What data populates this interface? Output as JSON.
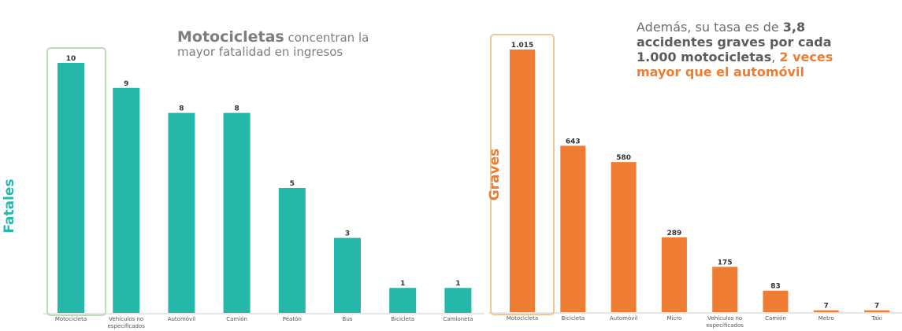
{
  "colors": {
    "fatales": "#26b7ab",
    "graves": "#ee7d31",
    "highlight_fatales": "#b9ddb6",
    "highlight_graves": "#f0c896",
    "baseline": "#cccccc",
    "bar_label": "#333333",
    "tick_label": "#555555"
  },
  "annotations": {
    "left": {
      "highlight": "Motocicletas",
      "rest_1": " concentran la",
      "line_2": "mayor fatalidad en ingresos"
    },
    "right": {
      "line_1_pre": "Además, su tasa es de ",
      "line_1_bold": "3,8",
      "line_2": "accidentes graves por cada",
      "line_3": "1.000 motocicletas",
      "comma": ", ",
      "line_3_orange": "2 veces",
      "line_4": "mayor que el automóvil"
    }
  },
  "chart_data": [
    {
      "type": "bar",
      "ylabel": "Fatales",
      "categories": [
        "Motocicleta",
        "Vehículos no especificados",
        "Automóvil",
        "Camión",
        "Peatón",
        "Bus",
        "Bicicleta",
        "Camioneta"
      ],
      "values": [
        10,
        9,
        8,
        8,
        5,
        3,
        1,
        1
      ],
      "value_labels": [
        "10",
        "9",
        "8",
        "8",
        "5",
        "3",
        "1",
        "1"
      ],
      "ylim": [
        0,
        10
      ],
      "highlighted_category": "Motocicleta",
      "grid": false
    },
    {
      "type": "bar",
      "ylabel": "Graves",
      "categories": [
        "Motocicleta",
        "Bicicleta",
        "Automóvil",
        "Micro",
        "Vehículos no especificados",
        "Camión",
        "Metro",
        "Taxi"
      ],
      "values": [
        1015,
        643,
        580,
        289,
        175,
        83,
        7,
        7
      ],
      "value_labels": [
        "1.015",
        "643",
        "580",
        "289",
        "175",
        "83",
        "7",
        "7"
      ],
      "ylim": [
        0,
        1015
      ],
      "highlighted_category": "Motocicleta",
      "grid": false
    }
  ]
}
